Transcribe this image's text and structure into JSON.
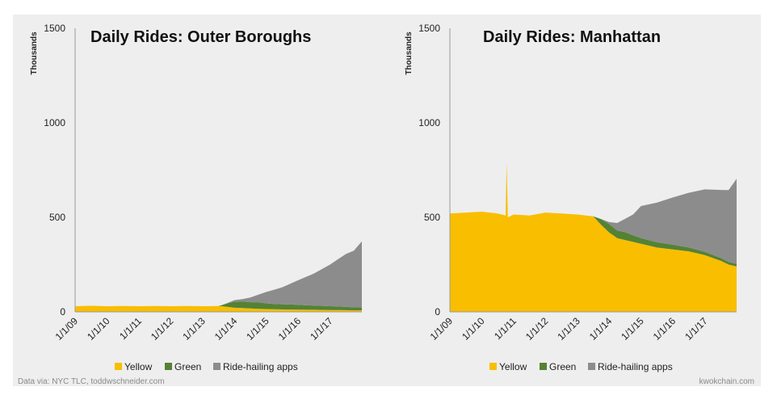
{
  "colors": {
    "yellow": "#F9BE00",
    "green": "#548235",
    "gray": "#8C8C8C",
    "panel": "#EEEEEE"
  },
  "footer": {
    "left": "Data via: NYC TLC, toddwschneider.com",
    "right": "kwokchain.com"
  },
  "chart_data": [
    {
      "type": "area",
      "title": "Daily Rides: Outer Boroughs",
      "ylabel": "Thousands",
      "xlabel": "",
      "ylim": [
        0,
        1500
      ],
      "yticks": [
        "0",
        "500",
        "1000",
        "1500"
      ],
      "xticks": [
        "1/1/09",
        "1/1/10",
        "1/1/11",
        "1/1/12",
        "1/1/13",
        "1/1/14",
        "1/1/15",
        "1/1/16",
        "1/1/17"
      ],
      "stacked": true,
      "grid": false,
      "legend": "bottom",
      "x": [
        2009.0,
        2009.5,
        2010.0,
        2010.5,
        2011.0,
        2011.5,
        2012.0,
        2012.5,
        2013.0,
        2013.5,
        2013.6,
        2013.8,
        2014.0,
        2014.25,
        2014.5,
        2014.75,
        2015.0,
        2015.25,
        2015.5,
        2016.0,
        2016.5,
        2017.0,
        2017.25,
        2017.5,
        2017.75,
        2018.0
      ],
      "series": [
        {
          "name": "Yellow",
          "values": [
            30,
            32,
            30,
            31,
            30,
            31,
            30,
            31,
            30,
            31,
            30,
            26,
            22,
            20,
            18,
            16,
            15,
            14,
            13,
            12,
            11,
            10,
            10,
            9,
            8,
            8
          ]
        },
        {
          "name": "Green",
          "values": [
            0,
            0,
            0,
            0,
            0,
            0,
            0,
            0,
            0,
            0,
            5,
            20,
            32,
            35,
            33,
            35,
            30,
            28,
            27,
            25,
            22,
            20,
            18,
            17,
            16,
            15
          ]
        },
        {
          "name": "Ride-hailing apps",
          "values": [
            0,
            0,
            0,
            0,
            0,
            0,
            0,
            0,
            0,
            0,
            0,
            2,
            8,
            12,
            25,
            40,
            60,
            75,
            90,
            130,
            170,
            220,
            250,
            280,
            300,
            350
          ]
        }
      ]
    },
    {
      "type": "area",
      "title": "Daily Rides: Manhattan",
      "ylabel": "Thousands",
      "xlabel": "",
      "ylim": [
        0,
        1500
      ],
      "yticks": [
        "0",
        "500",
        "1000",
        "1500"
      ],
      "xticks": [
        "1/1/09",
        "1/1/10",
        "1/1/11",
        "1/1/12",
        "1/1/13",
        "1/1/14",
        "1/1/15",
        "1/1/16",
        "1/1/17"
      ],
      "stacked": true,
      "grid": false,
      "legend": "bottom",
      "x": [
        2009.0,
        2009.5,
        2010.0,
        2010.5,
        2010.75,
        2010.78,
        2010.82,
        2011.0,
        2011.5,
        2012.0,
        2012.5,
        2013.0,
        2013.5,
        2013.75,
        2014.0,
        2014.25,
        2014.5,
        2014.75,
        2015.0,
        2015.5,
        2016.0,
        2016.5,
        2017.0,
        2017.5,
        2017.75,
        2018.0
      ],
      "series": [
        {
          "name": "Yellow",
          "values": [
            520,
            525,
            530,
            520,
            510,
            790,
            500,
            515,
            510,
            525,
            520,
            515,
            505,
            460,
            420,
            390,
            380,
            370,
            360,
            340,
            330,
            320,
            300,
            270,
            250,
            240
          ]
        },
        {
          "name": "Green",
          "values": [
            0,
            0,
            0,
            0,
            0,
            0,
            0,
            0,
            0,
            0,
            0,
            0,
            0,
            30,
            45,
            40,
            42,
            35,
            30,
            28,
            25,
            20,
            18,
            15,
            14,
            14
          ]
        },
        {
          "name": "Ride-hailing apps",
          "values": [
            0,
            0,
            0,
            0,
            0,
            0,
            0,
            0,
            0,
            0,
            0,
            0,
            0,
            0,
            10,
            40,
            70,
            110,
            170,
            210,
            250,
            290,
            330,
            360,
            380,
            450
          ]
        }
      ]
    }
  ]
}
